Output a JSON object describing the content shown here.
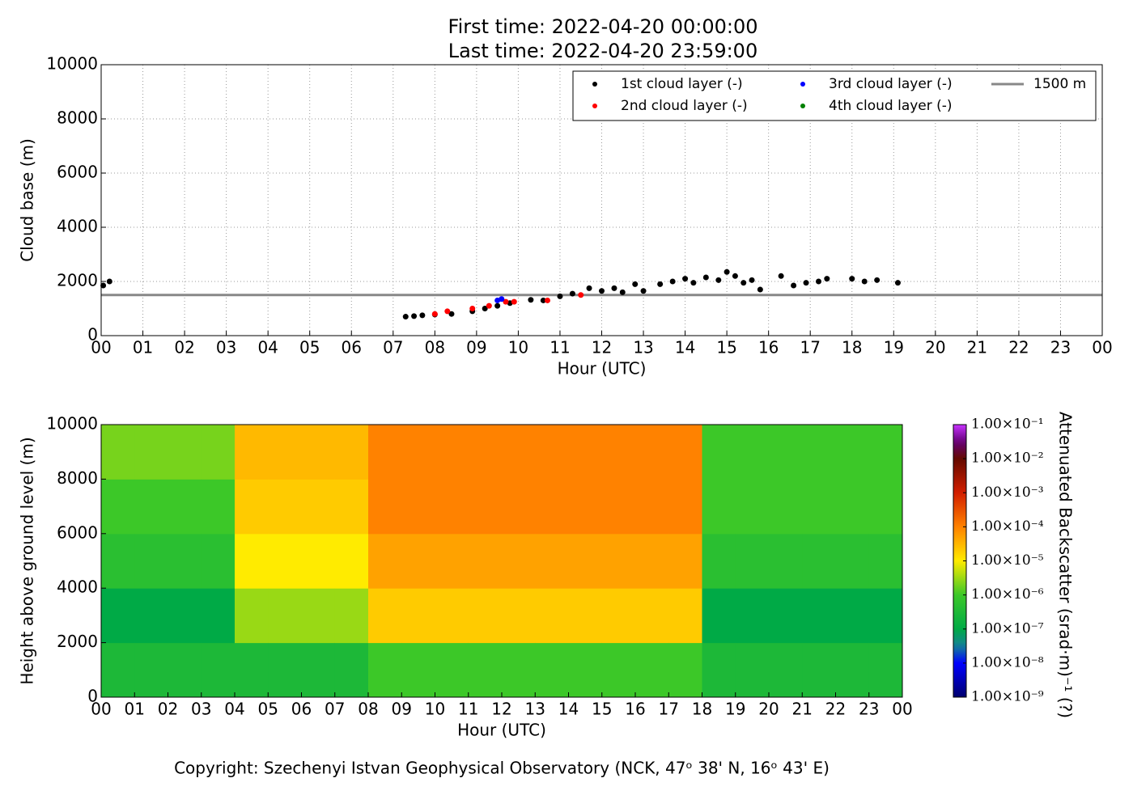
{
  "chart_data": [
    {
      "type": "scatter",
      "title": "First time: 2022-04-20 00:00:00",
      "subtitle": "Last time: 2022-04-20 23:59:00",
      "xlabel": "Hour (UTC)",
      "ylabel": "Cloud base (m)",
      "grid": true,
      "legend": "upper right",
      "xlim": [
        0,
        24
      ],
      "ylim": [
        0,
        10000
      ],
      "xticks": [
        {
          "value": 0,
          "label": "00"
        },
        {
          "value": 1,
          "label": "01"
        },
        {
          "value": 2,
          "label": "02"
        },
        {
          "value": 3,
          "label": "03"
        },
        {
          "value": 4,
          "label": "04"
        },
        {
          "value": 5,
          "label": "05"
        },
        {
          "value": 6,
          "label": "06"
        },
        {
          "value": 7,
          "label": "07"
        },
        {
          "value": 8,
          "label": "08"
        },
        {
          "value": 9,
          "label": "09"
        },
        {
          "value": 10,
          "label": "10"
        },
        {
          "value": 11,
          "label": "11"
        },
        {
          "value": 12,
          "label": "12"
        },
        {
          "value": 13,
          "label": "13"
        },
        {
          "value": 14,
          "label": "14"
        },
        {
          "value": 15,
          "label": "15"
        },
        {
          "value": 16,
          "label": "16"
        },
        {
          "value": 17,
          "label": "17"
        },
        {
          "value": 18,
          "label": "18"
        },
        {
          "value": 19,
          "label": "19"
        },
        {
          "value": 20,
          "label": "20"
        },
        {
          "value": 21,
          "label": "21"
        },
        {
          "value": 22,
          "label": "22"
        },
        {
          "value": 23,
          "label": "23"
        },
        {
          "value": 24,
          "label": "00"
        }
      ],
      "yticks": [
        0,
        2000,
        4000,
        6000,
        8000,
        10000
      ],
      "series": [
        {
          "name": "1st cloud layer (-)",
          "color": "#000000",
          "x": [
            0.05,
            0.2,
            7.3,
            7.5,
            7.7,
            8.0,
            8.4,
            8.9,
            9.2,
            9.5,
            9.8,
            10.3,
            10.6,
            11.0,
            11.3,
            11.7,
            12.0,
            12.3,
            12.5,
            12.8,
            13.0,
            13.4,
            13.7,
            14.0,
            14.2,
            14.5,
            14.8,
            15.0,
            15.2,
            15.4,
            15.6,
            15.8,
            16.3,
            16.6,
            16.9,
            17.2,
            17.4,
            18.0,
            18.3,
            18.6,
            19.1
          ],
          "values": [
            1850,
            2000,
            700,
            720,
            750,
            780,
            800,
            900,
            1000,
            1100,
            1200,
            1320,
            1300,
            1450,
            1550,
            1750,
            1650,
            1750,
            1600,
            1900,
            1650,
            1900,
            2000,
            2100,
            1950,
            2150,
            2050,
            2350,
            2200,
            1950,
            2050,
            1700,
            2200,
            1850,
            1950,
            2000,
            2100,
            2100,
            2000,
            2050,
            1950
          ]
        },
        {
          "name": "2nd cloud layer (-)",
          "color": "#ff0000",
          "x": [
            8.0,
            8.3,
            8.9,
            9.3,
            9.7,
            9.9,
            10.7,
            11.5
          ],
          "values": [
            800,
            900,
            1000,
            1100,
            1250,
            1250,
            1300,
            1500
          ]
        },
        {
          "name": "3rd cloud layer (-)",
          "color": "#0000ff",
          "x": [
            9.5,
            9.6
          ],
          "values": [
            1300,
            1350
          ]
        },
        {
          "name": "4th cloud layer (-)",
          "color": "#008000",
          "x": [],
          "values": []
        }
      ],
      "hline": {
        "name": "1500 m",
        "value": 1500,
        "color": "#888888"
      }
    },
    {
      "type": "heatmap",
      "xlabel": "Hour (UTC)",
      "ylabel": "Height above ground level (m)",
      "xlim": [
        0,
        24
      ],
      "ylim": [
        0,
        10000
      ],
      "xticks": [
        {
          "value": 0,
          "label": "00"
        },
        {
          "value": 1,
          "label": "01"
        },
        {
          "value": 2,
          "label": "02"
        },
        {
          "value": 3,
          "label": "03"
        },
        {
          "value": 4,
          "label": "04"
        },
        {
          "value": 5,
          "label": "05"
        },
        {
          "value": 6,
          "label": "06"
        },
        {
          "value": 7,
          "label": "07"
        },
        {
          "value": 8,
          "label": "08"
        },
        {
          "value": 9,
          "label": "09"
        },
        {
          "value": 10,
          "label": "10"
        },
        {
          "value": 11,
          "label": "11"
        },
        {
          "value": 12,
          "label": "12"
        },
        {
          "value": 13,
          "label": "13"
        },
        {
          "value": 14,
          "label": "14"
        },
        {
          "value": 15,
          "label": "15"
        },
        {
          "value": 16,
          "label": "16"
        },
        {
          "value": 17,
          "label": "17"
        },
        {
          "value": 18,
          "label": "18"
        },
        {
          "value": 19,
          "label": "19"
        },
        {
          "value": 20,
          "label": "20"
        },
        {
          "value": 21,
          "label": "21"
        },
        {
          "value": 22,
          "label": "22"
        },
        {
          "value": 23,
          "label": "23"
        },
        {
          "value": 24,
          "label": "00"
        }
      ],
      "yticks": [
        0,
        2000,
        4000,
        6000,
        8000,
        10000
      ],
      "xbins": [
        0,
        1,
        2,
        3,
        4,
        5,
        6,
        7,
        8,
        9,
        10,
        11,
        12,
        13,
        14,
        15,
        16,
        17,
        18,
        19,
        20,
        21,
        22,
        23,
        24
      ],
      "ybins": [
        0,
        2000,
        4000,
        6000,
        8000,
        10000
      ],
      "values": [
        [
          3e-07,
          1e-07,
          5e-07,
          1e-06,
          2e-06
        ],
        [
          3e-07,
          1e-07,
          5e-07,
          1e-06,
          2e-06
        ],
        [
          3e-07,
          1e-07,
          5e-07,
          1e-06,
          2e-06
        ],
        [
          3e-07,
          1e-07,
          5e-07,
          1e-06,
          2e-06
        ],
        [
          3e-07,
          3e-06,
          1e-05,
          2e-05,
          3e-05
        ],
        [
          3e-07,
          3e-06,
          1e-05,
          2e-05,
          3e-05
        ],
        [
          3e-07,
          3e-06,
          1e-05,
          2e-05,
          3e-05
        ],
        [
          3e-07,
          3e-06,
          1e-05,
          2e-05,
          3e-05
        ],
        [
          1e-06,
          2e-05,
          5e-05,
          0.0001,
          0.0001
        ],
        [
          1e-06,
          2e-05,
          5e-05,
          0.0001,
          0.0001
        ],
        [
          1e-06,
          2e-05,
          5e-05,
          0.0001,
          0.0001
        ],
        [
          1e-06,
          2e-05,
          5e-05,
          0.0001,
          0.0001
        ],
        [
          1e-06,
          2e-05,
          5e-05,
          0.0001,
          0.0001
        ],
        [
          1e-06,
          2e-05,
          5e-05,
          0.0001,
          0.0001
        ],
        [
          1e-06,
          2e-05,
          5e-05,
          0.0001,
          0.0001
        ],
        [
          1e-06,
          2e-05,
          5e-05,
          0.0001,
          0.0001
        ],
        [
          1e-06,
          2e-05,
          5e-05,
          0.0001,
          0.0001
        ],
        [
          1e-06,
          2e-05,
          5e-05,
          0.0001,
          0.0001
        ],
        [
          3e-07,
          1e-07,
          5e-07,
          1e-06,
          1e-06
        ],
        [
          3e-07,
          1e-07,
          5e-07,
          1e-06,
          1e-06
        ],
        [
          3e-07,
          1e-07,
          5e-07,
          1e-06,
          1e-06
        ],
        [
          3e-07,
          1e-07,
          5e-07,
          1e-06,
          1e-06
        ],
        [
          3e-07,
          1e-07,
          5e-07,
          1e-06,
          1e-06
        ],
        [
          3e-07,
          1e-07,
          5e-07,
          1e-06,
          1e-06
        ]
      ],
      "colorbar": {
        "label": "Attenuated Backscatter (srad·m)⁻¹ (?)",
        "log": true,
        "lim": [
          1e-09,
          0.1
        ],
        "ticks": [
          {
            "value": 1e-09,
            "label": "1.00×10⁻⁹"
          },
          {
            "value": 1e-08,
            "label": "1.00×10⁻⁸"
          },
          {
            "value": 1e-07,
            "label": "1.00×10⁻⁷"
          },
          {
            "value": 1e-06,
            "label": "1.00×10⁻⁶"
          },
          {
            "value": 1e-05,
            "label": "1.00×10⁻⁵"
          },
          {
            "value": 0.0001,
            "label": "1.00×10⁻⁴"
          },
          {
            "value": 0.001,
            "label": "1.00×10⁻³"
          },
          {
            "value": 0.01,
            "label": "1.00×10⁻²"
          },
          {
            "value": 0.1,
            "label": "1.00×10⁻¹"
          }
        ]
      }
    }
  ],
  "footer": "Copyright: Szechenyi Istvan Geophysical Observatory (NCK, 47ᵒ 38' N, 16ᵒ 43' E)"
}
